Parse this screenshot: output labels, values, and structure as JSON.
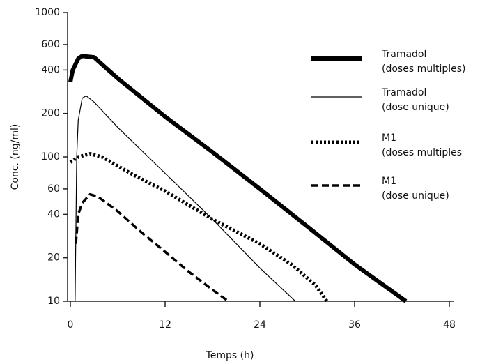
{
  "chart_data": {
    "type": "line",
    "x_label": "Temps (h)",
    "y_label": "Conc. (ng/ml)",
    "xlim": [
      0,
      48
    ],
    "xticks": [
      0,
      12,
      24,
      36,
      48
    ],
    "ylim": [
      10,
      1000
    ],
    "yticks": [
      10,
      20,
      40,
      60,
      100,
      200,
      400,
      600,
      1000
    ],
    "y_scale": "log",
    "grid": false,
    "legend": "right",
    "series": [
      {
        "name": "Tramadol\n(doses multiples)",
        "color": "#000000",
        "line_width": 6,
        "dash": "none",
        "x": [
          0,
          0.3,
          1,
          1.5,
          3,
          6,
          12,
          18,
          24,
          30,
          36,
          42.5
        ],
        "values": [
          330,
          400,
          480,
          500,
          490,
          350,
          190,
          108,
          60,
          33,
          18,
          10
        ]
      },
      {
        "name": "Tramadol\n(dose unique)",
        "color": "#000000",
        "line_width": 1.2,
        "dash": "none",
        "x": [
          0.6,
          0.8,
          1,
          1.5,
          2,
          3,
          6,
          12,
          18,
          24,
          28.5
        ],
        "values": [
          10,
          100,
          180,
          255,
          265,
          240,
          160,
          77,
          37,
          17,
          10
        ]
      },
      {
        "name": "M1\n(doses multiples",
        "color": "#000000",
        "line_width": 5,
        "dash": "3 3",
        "x": [
          0,
          1,
          2.5,
          4,
          8,
          12,
          18,
          24,
          28,
          31,
          32.5
        ],
        "values": [
          92,
          100,
          105,
          100,
          75,
          58,
          37,
          25,
          18,
          13,
          10
        ]
      },
      {
        "name": "M1\n(dose unique)",
        "color": "#000000",
        "line_width": 3.5,
        "dash": "10 5",
        "x": [
          0.7,
          1,
          1.5,
          2.5,
          3.5,
          6,
          9,
          12,
          15,
          18,
          20
        ],
        "values": [
          25,
          40,
          48,
          55,
          53,
          42,
          30,
          22,
          16,
          12,
          10
        ]
      }
    ]
  }
}
